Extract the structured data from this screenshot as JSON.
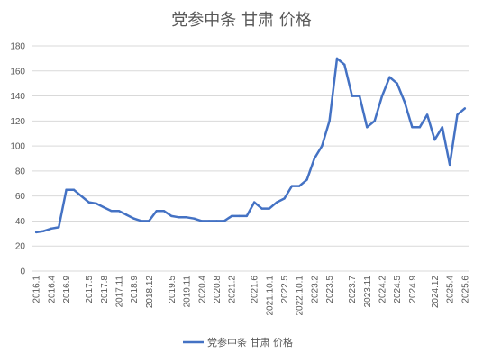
{
  "chart_data": {
    "type": "line",
    "title": "党参中条 甘肃 价格",
    "xlabel": "",
    "ylabel": "",
    "ylim": [
      0,
      180
    ],
    "y_ticks": [
      0,
      20,
      40,
      60,
      80,
      100,
      120,
      140,
      160,
      180
    ],
    "grid": "horizontal",
    "legend_position": "bottom",
    "x_tick_labels": [
      "2016.1",
      "2016.4",
      "2016.9",
      "2017.5",
      "2017.8",
      "2017.11",
      "2018.9",
      "2018.12",
      "2019.5",
      "2019.11",
      "2020.4",
      "2020.8",
      "2021.2",
      "2021.6",
      "2021.10.1",
      "2022.5",
      "2022.10.1",
      "2023.2",
      "2023.5",
      "2023.7",
      "2023.11",
      "2024.2",
      "2024.5",
      "2024.9",
      "2024.12",
      "2025.4",
      "2025.6"
    ],
    "series": [
      {
        "name": "党参中条 甘肃 价格",
        "color": "#4472c4",
        "values": [
          31,
          32,
          34,
          35,
          65,
          65,
          60,
          55,
          54,
          51,
          48,
          48,
          45,
          42,
          40,
          40,
          48,
          48,
          44,
          43,
          43,
          42,
          40,
          40,
          40,
          40,
          44,
          44,
          44,
          55,
          50,
          50,
          55,
          58,
          68,
          68,
          73,
          90,
          100,
          120,
          170,
          165,
          140,
          140,
          115,
          120,
          140,
          155,
          150,
          135,
          115,
          115,
          125,
          105,
          115,
          85,
          125,
          130
        ]
      }
    ]
  }
}
